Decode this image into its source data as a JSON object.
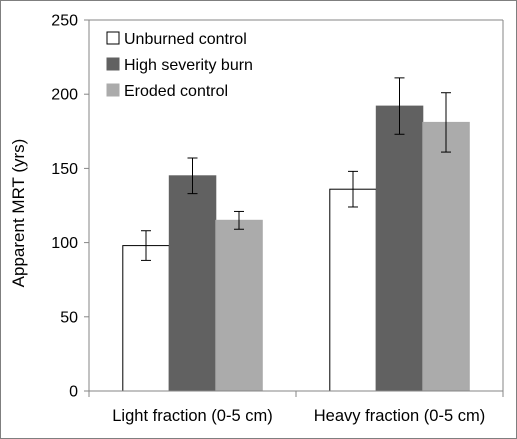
{
  "chart_data": {
    "type": "bar",
    "title": "",
    "xlabel": "",
    "ylabel": "Apparent MRT (yrs)",
    "ylim": [
      0,
      250
    ],
    "yticks": [
      0,
      50,
      100,
      150,
      200,
      250
    ],
    "grid": false,
    "legend_position": "top-left",
    "categories": [
      "Light fraction (0-5 cm)",
      "Heavy fraction (0-5 cm)"
    ],
    "series": [
      {
        "name": "Unburned control",
        "color": "#ffffff",
        "values": [
          98,
          136
        ],
        "errors": [
          10,
          12
        ]
      },
      {
        "name": "High severity burn",
        "color": "#616161",
        "values": [
          145,
          192
        ],
        "errors": [
          12,
          19
        ]
      },
      {
        "name": "Eroded control",
        "color": "#ababab",
        "values": [
          115,
          181
        ],
        "errors": [
          6,
          20
        ]
      }
    ]
  }
}
